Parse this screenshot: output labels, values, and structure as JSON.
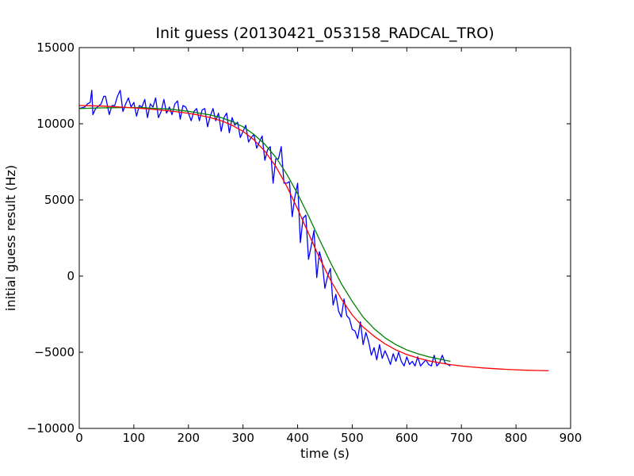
{
  "chart_data": {
    "type": "line",
    "title": "Init guess (20130421_053158_RADCAL_TRO)",
    "xlabel": "time (s)",
    "ylabel": "initial guess result (Hz)",
    "xlim": [
      0,
      900
    ],
    "ylim": [
      -10000,
      15000
    ],
    "xticks": [
      0,
      100,
      200,
      300,
      400,
      500,
      600,
      700,
      800,
      900
    ],
    "yticks": [
      -10000,
      -5000,
      0,
      5000,
      10000,
      15000
    ],
    "grid": false,
    "legend": "none",
    "series": [
      {
        "color": "#0000ff",
        "x": [
          0,
          10,
          15,
          20,
          23,
          25,
          30,
          40,
          45,
          48,
          55,
          60,
          65,
          70,
          75,
          80,
          85,
          90,
          95,
          100,
          105,
          110,
          115,
          120,
          125,
          130,
          135,
          140,
          145,
          150,
          155,
          160,
          165,
          170,
          175,
          180,
          185,
          190,
          195,
          200,
          205,
          210,
          215,
          220,
          225,
          230,
          235,
          240,
          245,
          250,
          255,
          260,
          265,
          270,
          275,
          280,
          285,
          290,
          295,
          300,
          305,
          310,
          315,
          320,
          325,
          330,
          335,
          340,
          345,
          350,
          355,
          360,
          365,
          370,
          375,
          380,
          385,
          390,
          395,
          400,
          405,
          410,
          415,
          420,
          425,
          430,
          435,
          440,
          445,
          450,
          455,
          460,
          465,
          470,
          475,
          480,
          485,
          490,
          495,
          500,
          505,
          510,
          515,
          520,
          525,
          530,
          535,
          540,
          545,
          550,
          555,
          560,
          565,
          570,
          575,
          580,
          585,
          590,
          595,
          600,
          605,
          610,
          615,
          620,
          625,
          630,
          635,
          640,
          645,
          650,
          655,
          660,
          665,
          670,
          675,
          680
        ],
        "y": [
          11000,
          11100,
          11300,
          11400,
          12200,
          10600,
          11000,
          11300,
          11800,
          11800,
          10600,
          11200,
          11200,
          11800,
          12200,
          10800,
          11300,
          11700,
          11100,
          11400,
          10500,
          11200,
          11100,
          11600,
          10400,
          11300,
          11100,
          11700,
          10400,
          10800,
          11600,
          10700,
          11100,
          10600,
          11300,
          11500,
          10300,
          11200,
          11100,
          10700,
          10200,
          10800,
          11000,
          10200,
          10900,
          11000,
          9800,
          10500,
          11000,
          10200,
          10700,
          9500,
          10400,
          10700,
          9400,
          10400,
          9900,
          10100,
          9100,
          9500,
          9900,
          8800,
          9100,
          9300,
          8400,
          8800,
          9200,
          7600,
          8300,
          8500,
          6100,
          7700,
          7700,
          8500,
          6100,
          6100,
          6200,
          3900,
          5200,
          6100,
          2200,
          3800,
          4000,
          1100,
          2000,
          3000,
          -100,
          1600,
          900,
          -800,
          0,
          500,
          -1900,
          -1200,
          -2300,
          -2700,
          -1500,
          -2600,
          -2800,
          -3500,
          -3600,
          -4100,
          -3000,
          -4500,
          -3700,
          -4300,
          -5200,
          -4700,
          -5500,
          -4500,
          -5400,
          -4900,
          -5300,
          -5800,
          -5100,
          -5600,
          -5000,
          -5600,
          -5900,
          -5300,
          -5800,
          -5600,
          -5900,
          -5300,
          -5900,
          -5700,
          -5500,
          -5800,
          -5900,
          -5200,
          -5900,
          -5700,
          -5200,
          -5700,
          -5800,
          -5900
        ]
      },
      {
        "color": "#008000",
        "x": [
          0,
          20,
          40,
          60,
          80,
          100,
          120,
          140,
          160,
          180,
          200,
          220,
          240,
          260,
          280,
          300,
          320,
          340,
          360,
          380,
          400,
          420,
          440,
          460,
          480,
          500,
          520,
          540,
          560,
          580,
          600,
          620,
          640,
          660,
          680
        ],
        "y": [
          11000,
          11020,
          11040,
          11050,
          11060,
          11060,
          11050,
          11000,
          10980,
          10900,
          10820,
          10700,
          10580,
          10400,
          10150,
          9800,
          9300,
          8650,
          7800,
          6700,
          5400,
          3950,
          2400,
          900,
          -500,
          -1650,
          -2700,
          -3450,
          -4050,
          -4500,
          -4850,
          -5100,
          -5300,
          -5450,
          -5600
        ]
      },
      {
        "color": "#ff0000",
        "x": [
          0,
          20,
          40,
          60,
          80,
          100,
          120,
          140,
          160,
          180,
          200,
          220,
          240,
          260,
          280,
          300,
          320,
          340,
          360,
          380,
          400,
          420,
          440,
          460,
          480,
          500,
          520,
          540,
          560,
          580,
          600,
          620,
          640,
          660,
          680,
          700,
          720,
          740,
          760,
          780,
          800,
          820,
          840,
          860
        ],
        "y": [
          11200,
          11180,
          11160,
          11130,
          11090,
          11040,
          10990,
          10930,
          10860,
          10780,
          10680,
          10560,
          10400,
          10200,
          9900,
          9500,
          8950,
          8200,
          7200,
          5900,
          4400,
          2800,
          1200,
          -250,
          -1500,
          -2550,
          -3350,
          -3950,
          -4450,
          -4850,
          -5150,
          -5380,
          -5560,
          -5700,
          -5810,
          -5900,
          -5970,
          -6030,
          -6080,
          -6120,
          -6150,
          -6180,
          -6200,
          -6220
        ]
      }
    ]
  }
}
